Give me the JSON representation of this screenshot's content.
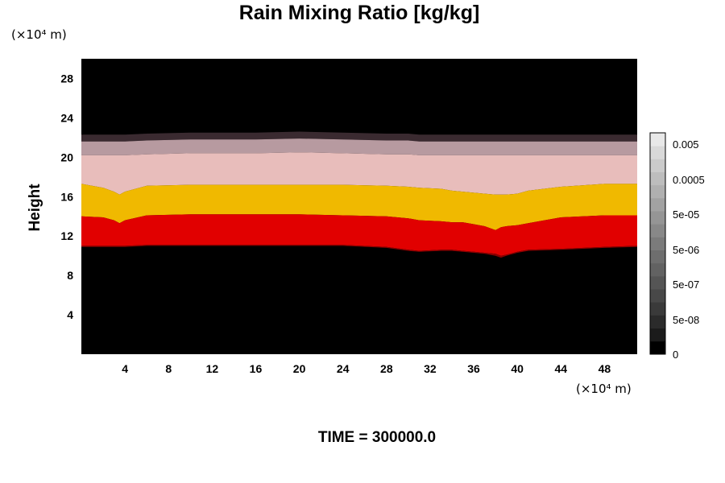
{
  "chart_data": {
    "type": "heatmap",
    "title": "Rain Mixing Ratio [kg/kg]",
    "x_unit": "(×10⁴ m)",
    "y_unit": "(×10⁴ m)",
    "ylabel": "Height",
    "xlabel": "",
    "xlim": [
      0,
      51
    ],
    "ylim": [
      0,
      30
    ],
    "xticks": [
      4,
      8,
      12,
      16,
      20,
      24,
      28,
      32,
      36,
      40,
      44,
      48
    ],
    "yticks": [
      4,
      8,
      12,
      16,
      20,
      24,
      28
    ],
    "colorbar": {
      "tick_labels": [
        "0.005",
        "0.0005",
        "5e-05",
        "5e-06",
        "5e-07",
        "5e-08",
        "0"
      ],
      "levels_colors": [
        "#000000",
        "#1b1b1b",
        "#2b2b2b",
        "#3a3a3a",
        "#484848",
        "#555555",
        "#626262",
        "#6e6e6e",
        "#7b7b7b",
        "#888888",
        "#959595",
        "#a2a2a2",
        "#b0b0b0",
        "#bdbdbd",
        "#cbcbcb",
        "#d9d9d9",
        "#e8e8e8"
      ]
    },
    "layers_description": "contour bands vs x",
    "x_samples": [
      0,
      2,
      3,
      3.5,
      4,
      6,
      10,
      16,
      20,
      24,
      28,
      30,
      31,
      33,
      34,
      35,
      36,
      37,
      38,
      38.5,
      39,
      40,
      41,
      44,
      48,
      51
    ],
    "bands": [
      {
        "name": "dark-fringe",
        "color": "#3a2a30",
        "bottom": [
          21.6,
          21.6,
          21.6,
          21.6,
          21.6,
          21.7,
          21.8,
          21.8,
          21.9,
          21.8,
          21.7,
          21.7,
          21.6,
          21.6,
          21.6,
          21.6,
          21.6,
          21.6,
          21.6,
          21.6,
          21.6,
          21.6,
          21.6,
          21.6,
          21.6,
          21.6
        ],
        "top": [
          22.3,
          22.3,
          22.3,
          22.3,
          22.3,
          22.4,
          22.5,
          22.5,
          22.6,
          22.5,
          22.4,
          22.4,
          22.3,
          22.3,
          22.3,
          22.3,
          22.3,
          22.3,
          22.3,
          22.3,
          22.3,
          22.3,
          22.3,
          22.3,
          22.3,
          22.3
        ]
      },
      {
        "name": "mauve",
        "color": "#b79aa0",
        "bottom": [
          20.2,
          20.2,
          20.2,
          20.2,
          20.2,
          20.3,
          20.4,
          20.4,
          20.5,
          20.4,
          20.3,
          20.3,
          20.2,
          20.2,
          20.2,
          20.2,
          20.2,
          20.2,
          20.2,
          20.2,
          20.2,
          20.2,
          20.2,
          20.2,
          20.2,
          20.2
        ],
        "top": [
          21.6,
          21.6,
          21.6,
          21.6,
          21.6,
          21.7,
          21.8,
          21.8,
          21.9,
          21.8,
          21.7,
          21.7,
          21.6,
          21.6,
          21.6,
          21.6,
          21.6,
          21.6,
          21.6,
          21.6,
          21.6,
          21.6,
          21.6,
          21.6,
          21.6,
          21.6
        ]
      },
      {
        "name": "pink",
        "color": "#e8bdbb",
        "bottom": [
          17.3,
          16.9,
          16.5,
          16.2,
          16.5,
          17.1,
          17.2,
          17.2,
          17.2,
          17.2,
          17.1,
          17.0,
          16.9,
          16.8,
          16.6,
          16.5,
          16.4,
          16.3,
          16.2,
          16.2,
          16.2,
          16.3,
          16.6,
          17.0,
          17.3,
          17.3
        ],
        "top": [
          20.2,
          20.2,
          20.2,
          20.2,
          20.2,
          20.3,
          20.4,
          20.4,
          20.5,
          20.4,
          20.3,
          20.3,
          20.2,
          20.2,
          20.2,
          20.2,
          20.2,
          20.2,
          20.2,
          20.2,
          20.2,
          20.2,
          20.2,
          20.2,
          20.2,
          20.2
        ]
      },
      {
        "name": "yellow",
        "color": "#f0b900",
        "bottom": [
          14.0,
          13.9,
          13.6,
          13.3,
          13.6,
          14.1,
          14.2,
          14.2,
          14.2,
          14.1,
          14.0,
          13.8,
          13.6,
          13.5,
          13.4,
          13.4,
          13.2,
          13.0,
          12.6,
          12.9,
          13.0,
          13.1,
          13.3,
          13.9,
          14.1,
          14.1
        ],
        "top": [
          17.3,
          16.9,
          16.5,
          16.2,
          16.5,
          17.1,
          17.2,
          17.2,
          17.2,
          17.2,
          17.1,
          17.0,
          16.9,
          16.8,
          16.6,
          16.5,
          16.4,
          16.3,
          16.2,
          16.2,
          16.2,
          16.3,
          16.6,
          17.0,
          17.3,
          17.3
        ]
      },
      {
        "name": "red",
        "color": "#e10000",
        "bottom": [
          11.0,
          11.0,
          11.0,
          11.0,
          11.0,
          11.1,
          11.1,
          11.1,
          11.1,
          11.1,
          10.9,
          10.6,
          10.5,
          10.6,
          10.6,
          10.5,
          10.4,
          10.3,
          10.2,
          10.0,
          10.1,
          10.4,
          10.6,
          10.7,
          10.9,
          11.0
        ],
        "top": [
          14.0,
          13.9,
          13.6,
          13.3,
          13.6,
          14.1,
          14.2,
          14.2,
          14.2,
          14.1,
          14.0,
          13.8,
          13.6,
          13.5,
          13.4,
          13.4,
          13.2,
          13.0,
          12.6,
          12.9,
          13.0,
          13.1,
          13.3,
          13.9,
          14.1,
          14.1
        ]
      },
      {
        "name": "dark-red",
        "color": "#8a0000",
        "bottom": [
          10.9,
          10.9,
          10.9,
          10.9,
          10.9,
          11.0,
          11.0,
          11.0,
          11.0,
          11.0,
          10.8,
          10.5,
          10.4,
          10.5,
          10.5,
          10.4,
          10.3,
          10.2,
          10.0,
          9.8,
          10.0,
          10.3,
          10.5,
          10.6,
          10.8,
          10.9
        ],
        "top": [
          11.0,
          11.0,
          11.0,
          11.0,
          11.0,
          11.1,
          11.1,
          11.1,
          11.1,
          11.1,
          10.9,
          10.6,
          10.5,
          10.6,
          10.6,
          10.5,
          10.4,
          10.3,
          10.2,
          10.0,
          10.1,
          10.4,
          10.6,
          10.7,
          10.9,
          11.0
        ]
      }
    ],
    "background_color": "#000000",
    "footer": "TIME = 300000.0"
  }
}
